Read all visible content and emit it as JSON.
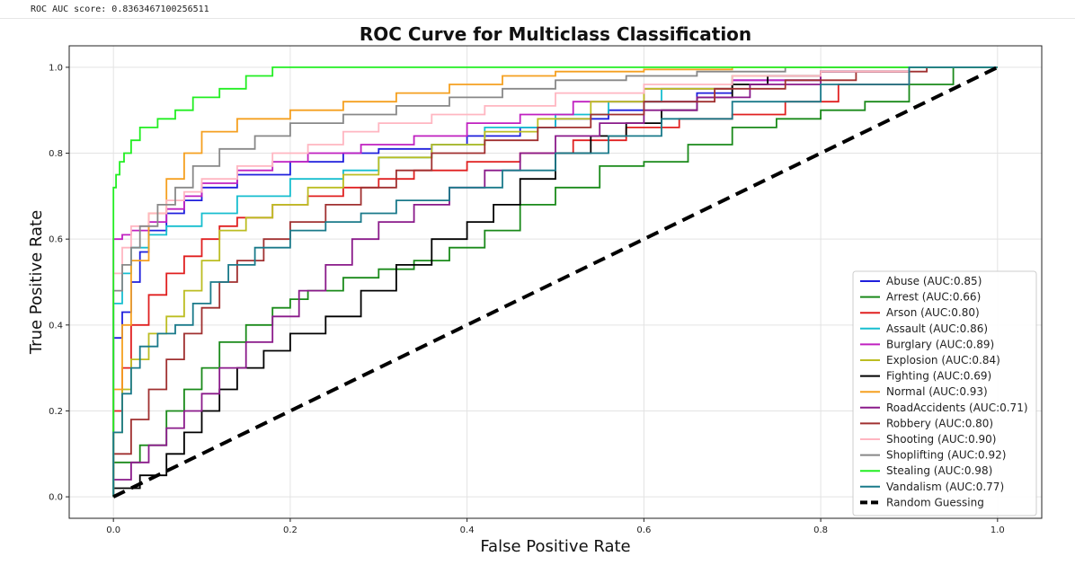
{
  "header": {
    "score_text": "ROC AUC score: 0.8363467100256511"
  },
  "chart_data": {
    "type": "line",
    "title": "ROC Curve for Multiclass Classification",
    "xlabel": "False Positive Rate",
    "ylabel": "True Positive Rate",
    "xlim": [
      -0.05,
      1.05
    ],
    "ylim": [
      -0.05,
      1.05
    ],
    "xticks": [
      0.0,
      0.2,
      0.4,
      0.6,
      0.8,
      1.0
    ],
    "yticks": [
      0.0,
      0.2,
      0.4,
      0.6,
      0.8,
      1.0
    ],
    "xtick_labels": [
      "0.0",
      "0.2",
      "0.4",
      "0.6",
      "0.8",
      "1.0"
    ],
    "ytick_labels": [
      "0.0",
      "0.2",
      "0.4",
      "0.6",
      "0.8",
      "1.0"
    ],
    "grid": true,
    "legend_position": "lower-right",
    "series": [
      {
        "name": "Abuse (AUC:0.85)",
        "color": "#1f1fdc",
        "x": [
          0,
          0,
          0.01,
          0.02,
          0.03,
          0.04,
          0.06,
          0.08,
          0.1,
          0.14,
          0.2,
          0.26,
          0.3,
          0.36,
          0.4,
          0.46,
          0.5,
          0.56,
          0.6,
          0.66,
          0.7,
          0.8,
          0.9,
          1.0
        ],
        "y": [
          0,
          0.3,
          0.37,
          0.43,
          0.5,
          0.57,
          0.62,
          0.66,
          0.69,
          0.72,
          0.75,
          0.78,
          0.8,
          0.81,
          0.82,
          0.84,
          0.86,
          0.88,
          0.9,
          0.92,
          0.94,
          0.97,
          0.99,
          1.0
        ]
      },
      {
        "name": "Arrest (AUC:0.66)",
        "color": "#1a8a1a",
        "x": [
          0,
          0.03,
          0.06,
          0.08,
          0.1,
          0.12,
          0.15,
          0.18,
          0.2,
          0.22,
          0.26,
          0.3,
          0.34,
          0.38,
          0.42,
          0.46,
          0.5,
          0.55,
          0.6,
          0.65,
          0.7,
          0.75,
          0.8,
          0.85,
          0.9,
          0.95,
          1.0
        ],
        "y": [
          0,
          0.08,
          0.12,
          0.2,
          0.25,
          0.3,
          0.36,
          0.4,
          0.44,
          0.46,
          0.48,
          0.51,
          0.53,
          0.55,
          0.58,
          0.62,
          0.68,
          0.72,
          0.77,
          0.78,
          0.82,
          0.86,
          0.88,
          0.9,
          0.92,
          0.96,
          1.0
        ]
      },
      {
        "name": "Arson (AUC:0.80)",
        "color": "#e02020",
        "x": [
          0,
          0.01,
          0.02,
          0.04,
          0.06,
          0.08,
          0.1,
          0.12,
          0.14,
          0.18,
          0.22,
          0.26,
          0.3,
          0.34,
          0.4,
          0.46,
          0.52,
          0.58,
          0.64,
          0.7,
          0.76,
          0.82,
          0.9,
          1.0
        ],
        "y": [
          0,
          0.2,
          0.3,
          0.4,
          0.47,
          0.52,
          0.56,
          0.6,
          0.63,
          0.65,
          0.68,
          0.7,
          0.72,
          0.74,
          0.76,
          0.78,
          0.8,
          0.83,
          0.86,
          0.88,
          0.89,
          0.92,
          0.96,
          1.0
        ]
      },
      {
        "name": "Assault (AUC:0.86)",
        "color": "#17becf",
        "x": [
          0,
          0,
          0.01,
          0.02,
          0.04,
          0.06,
          0.1,
          0.14,
          0.2,
          0.26,
          0.3,
          0.36,
          0.42,
          0.5,
          0.56,
          0.62,
          0.7,
          0.8,
          0.9,
          1.0
        ],
        "y": [
          0,
          0.35,
          0.45,
          0.52,
          0.58,
          0.61,
          0.63,
          0.66,
          0.7,
          0.74,
          0.76,
          0.79,
          0.82,
          0.86,
          0.89,
          0.92,
          0.95,
          0.98,
          0.99,
          1.0
        ]
      },
      {
        "name": "Burglary (AUC:0.89)",
        "color": "#c020c0",
        "x": [
          0,
          0,
          0.01,
          0.02,
          0.04,
          0.06,
          0.08,
          0.1,
          0.14,
          0.18,
          0.22,
          0.28,
          0.34,
          0.4,
          0.46,
          0.52,
          0.6,
          0.7,
          0.8,
          0.9,
          1.0
        ],
        "y": [
          0,
          0.58,
          0.6,
          0.61,
          0.62,
          0.64,
          0.67,
          0.7,
          0.73,
          0.76,
          0.78,
          0.8,
          0.82,
          0.84,
          0.87,
          0.89,
          0.92,
          0.95,
          0.97,
          0.99,
          1.0
        ]
      },
      {
        "name": "Explosion (AUC:0.84)",
        "color": "#bcbd22",
        "x": [
          0,
          0.01,
          0.02,
          0.04,
          0.06,
          0.08,
          0.1,
          0.12,
          0.15,
          0.18,
          0.22,
          0.26,
          0.3,
          0.36,
          0.42,
          0.48,
          0.54,
          0.6,
          0.7,
          0.8,
          0.9,
          1.0
        ],
        "y": [
          0,
          0.15,
          0.25,
          0.32,
          0.38,
          0.42,
          0.48,
          0.55,
          0.62,
          0.65,
          0.68,
          0.72,
          0.75,
          0.79,
          0.82,
          0.85,
          0.88,
          0.92,
          0.95,
          0.98,
          0.99,
          1.0
        ]
      },
      {
        "name": "Fighting (AUC:0.69)",
        "color": "#000000",
        "x": [
          0,
          0.03,
          0.06,
          0.08,
          0.1,
          0.12,
          0.14,
          0.17,
          0.2,
          0.24,
          0.28,
          0.32,
          0.36,
          0.4,
          0.43,
          0.46,
          0.5,
          0.54,
          0.58,
          0.62,
          0.66,
          0.7,
          0.74,
          0.8,
          0.9,
          1.0
        ],
        "y": [
          0,
          0.02,
          0.05,
          0.1,
          0.15,
          0.2,
          0.25,
          0.3,
          0.34,
          0.38,
          0.42,
          0.48,
          0.54,
          0.6,
          0.64,
          0.68,
          0.74,
          0.8,
          0.84,
          0.87,
          0.9,
          0.93,
          0.96,
          0.98,
          0.99,
          1.0
        ]
      },
      {
        "name": "Normal (AUC:0.93)",
        "color": "#f5a020",
        "x": [
          0,
          0.01,
          0.02,
          0.04,
          0.06,
          0.08,
          0.1,
          0.14,
          0.2,
          0.26,
          0.32,
          0.38,
          0.44,
          0.5,
          0.6,
          0.7,
          0.8,
          0.9,
          1.0
        ],
        "y": [
          0,
          0.25,
          0.4,
          0.55,
          0.66,
          0.74,
          0.8,
          0.85,
          0.88,
          0.9,
          0.92,
          0.94,
          0.96,
          0.98,
          0.99,
          0.995,
          1.0,
          1.0,
          1.0
        ]
      },
      {
        "name": "RoadAccidents (AUC:0.71)",
        "color": "#8a1a8a",
        "x": [
          0,
          0.02,
          0.04,
          0.06,
          0.08,
          0.1,
          0.12,
          0.15,
          0.18,
          0.21,
          0.24,
          0.27,
          0.3,
          0.34,
          0.38,
          0.42,
          0.46,
          0.5,
          0.55,
          0.6,
          0.66,
          0.72,
          0.8,
          0.9,
          1.0
        ],
        "y": [
          0,
          0.04,
          0.08,
          0.12,
          0.16,
          0.2,
          0.24,
          0.3,
          0.36,
          0.42,
          0.48,
          0.54,
          0.6,
          0.64,
          0.68,
          0.72,
          0.76,
          0.8,
          0.84,
          0.87,
          0.9,
          0.93,
          0.96,
          0.99,
          1.0
        ]
      },
      {
        "name": "Robbery (AUC:0.80)",
        "color": "#a03030",
        "x": [
          0,
          0.02,
          0.04,
          0.06,
          0.08,
          0.1,
          0.12,
          0.14,
          0.17,
          0.2,
          0.24,
          0.28,
          0.32,
          0.36,
          0.42,
          0.48,
          0.54,
          0.6,
          0.68,
          0.76,
          0.84,
          0.92,
          1.0
        ],
        "y": [
          0,
          0.1,
          0.18,
          0.25,
          0.32,
          0.38,
          0.44,
          0.5,
          0.55,
          0.6,
          0.64,
          0.68,
          0.72,
          0.76,
          0.8,
          0.83,
          0.86,
          0.89,
          0.92,
          0.95,
          0.97,
          0.99,
          1.0
        ]
      },
      {
        "name": "Shooting (AUC:0.90)",
        "color": "#ffb6c1",
        "x": [
          0,
          0,
          0.01,
          0.02,
          0.04,
          0.06,
          0.08,
          0.1,
          0.14,
          0.18,
          0.22,
          0.26,
          0.3,
          0.36,
          0.42,
          0.5,
          0.6,
          0.7,
          0.8,
          0.9,
          1.0
        ],
        "y": [
          0,
          0.45,
          0.52,
          0.58,
          0.63,
          0.66,
          0.69,
          0.71,
          0.74,
          0.77,
          0.8,
          0.82,
          0.85,
          0.87,
          0.89,
          0.91,
          0.94,
          0.96,
          0.98,
          0.99,
          1.0
        ]
      },
      {
        "name": "Shoplifting (AUC:0.92)",
        "color": "#888888",
        "x": [
          0,
          0,
          0.01,
          0.02,
          0.03,
          0.05,
          0.07,
          0.09,
          0.12,
          0.16,
          0.2,
          0.26,
          0.32,
          0.38,
          0.44,
          0.5,
          0.58,
          0.66,
          0.76,
          0.86,
          1.0
        ],
        "y": [
          0,
          0.4,
          0.48,
          0.54,
          0.58,
          0.63,
          0.68,
          0.72,
          0.77,
          0.81,
          0.84,
          0.87,
          0.89,
          0.91,
          0.93,
          0.95,
          0.97,
          0.98,
          0.99,
          1.0,
          1.0
        ]
      },
      {
        "name": "Stealing (AUC:0.98)",
        "color": "#22ee22",
        "x": [
          0,
          0,
          0.003,
          0.007,
          0.012,
          0.02,
          0.03,
          0.05,
          0.07,
          0.09,
          0.12,
          0.15,
          0.18,
          0.2,
          0.25,
          0.3,
          0.4,
          0.6,
          0.8,
          1.0
        ],
        "y": [
          0,
          0.64,
          0.72,
          0.75,
          0.78,
          0.8,
          0.83,
          0.86,
          0.88,
          0.9,
          0.93,
          0.95,
          0.98,
          1.0,
          1.0,
          1.0,
          1.0,
          1.0,
          1.0,
          1.0
        ]
      },
      {
        "name": "Vandalism (AUC:0.77)",
        "color": "#1a7a8a",
        "x": [
          0,
          0.01,
          0.02,
          0.03,
          0.05,
          0.07,
          0.09,
          0.11,
          0.13,
          0.16,
          0.2,
          0.24,
          0.28,
          0.32,
          0.38,
          0.44,
          0.5,
          0.56,
          0.62,
          0.7,
          0.8,
          0.9,
          1.0
        ],
        "y": [
          0,
          0.15,
          0.24,
          0.3,
          0.35,
          0.38,
          0.4,
          0.45,
          0.5,
          0.54,
          0.58,
          0.62,
          0.64,
          0.66,
          0.69,
          0.72,
          0.76,
          0.8,
          0.84,
          0.88,
          0.92,
          0.96,
          1.0
        ]
      },
      {
        "name": "Random Guessing",
        "color": "#000000",
        "dashed": true,
        "x": [
          0,
          1
        ],
        "y": [
          0,
          1
        ]
      }
    ]
  }
}
